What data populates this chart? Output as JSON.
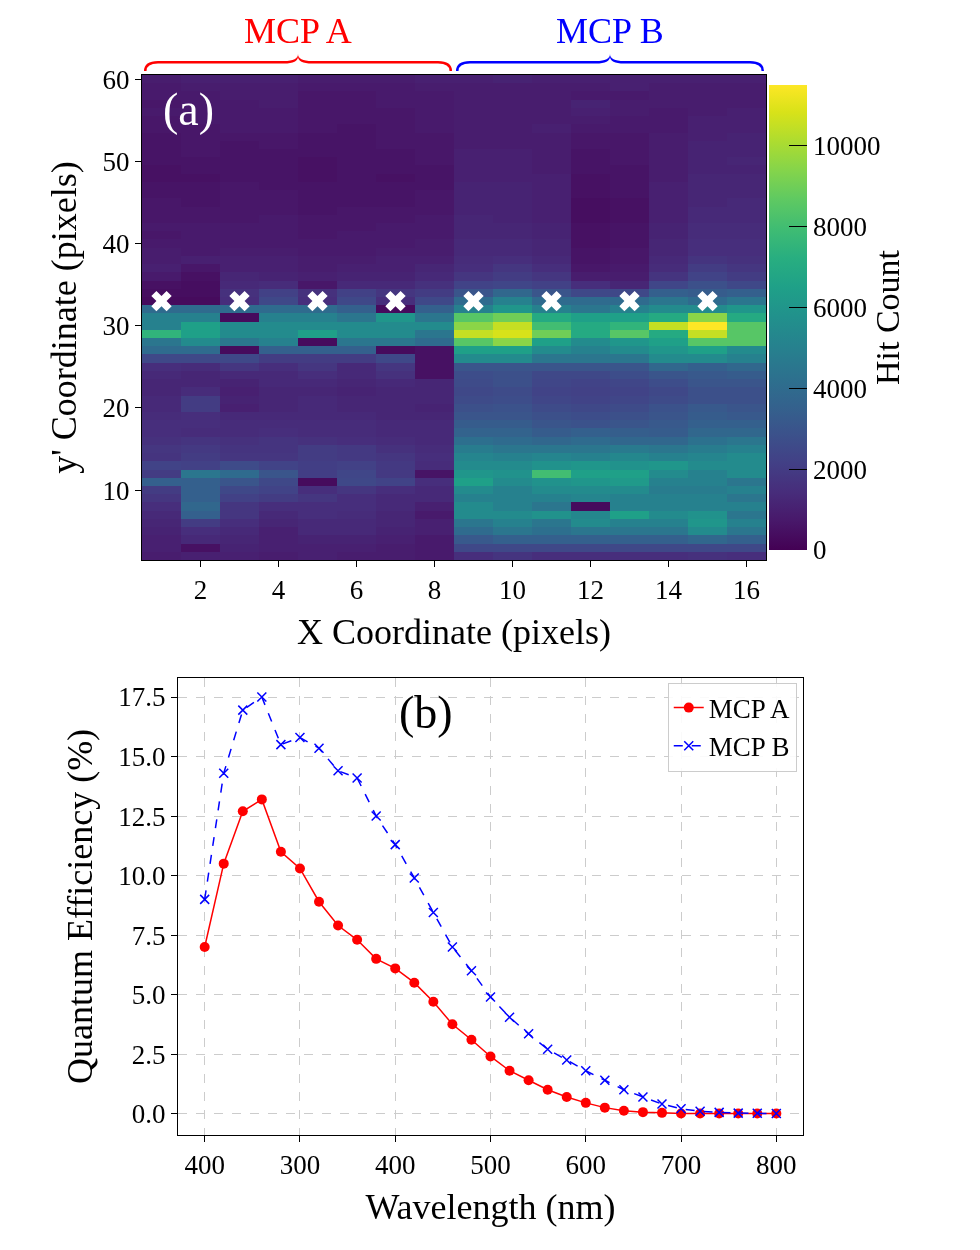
{
  "chart_data": [
    {
      "type": "heatmap",
      "annotations": [
        "(a)",
        "MCP A",
        "MCP B"
      ],
      "xlabel": "X Coordinate (pixels)",
      "ylabel": "y' Coordinate (pixels)",
      "clabel": "Hit Count",
      "x": [
        1,
        2,
        3,
        4,
        5,
        6,
        7,
        8,
        9,
        10,
        11,
        12,
        13,
        14,
        15,
        16
      ],
      "ylim": [
        1.5,
        60.5
      ],
      "yticks": [
        10,
        20,
        30,
        40,
        50,
        60
      ],
      "cells": [
        [
          900,
          1000,
          1000,
          1000,
          900,
          900,
          900,
          1000,
          1000,
          1100,
          1000,
          1000,
          1000,
          1000,
          1000,
          1000
        ],
        [
          800,
          900,
          900,
          900,
          800,
          800,
          800,
          900,
          900,
          900,
          900,
          900,
          1000,
          900,
          900,
          900
        ],
        [
          800,
          800,
          900,
          900,
          700,
          700,
          800,
          800,
          900,
          900,
          900,
          800,
          800,
          900,
          900,
          900
        ],
        [
          700,
          800,
          800,
          900,
          700,
          700,
          800,
          800,
          900,
          900,
          900,
          1100,
          900,
          900,
          900,
          900
        ],
        [
          800,
          800,
          800,
          800,
          700,
          700,
          700,
          800,
          900,
          900,
          900,
          1000,
          900,
          800,
          900,
          1000
        ],
        [
          700,
          800,
          800,
          800,
          700,
          700,
          700,
          800,
          900,
          900,
          900,
          900,
          800,
          800,
          1000,
          1000
        ],
        [
          700,
          700,
          800,
          800,
          700,
          600,
          700,
          800,
          900,
          900,
          1000,
          800,
          800,
          800,
          1000,
          1000
        ],
        [
          600,
          700,
          700,
          700,
          600,
          600,
          700,
          700,
          900,
          900,
          900,
          700,
          700,
          900,
          1000,
          1100
        ],
        [
          600,
          700,
          600,
          700,
          600,
          600,
          700,
          700,
          900,
          900,
          900,
          700,
          700,
          900,
          1100,
          1100
        ],
        [
          600,
          700,
          600,
          600,
          600,
          600,
          600,
          700,
          1000,
          1000,
          900,
          600,
          700,
          900,
          1100,
          1100
        ],
        [
          600,
          600,
          600,
          600,
          500,
          600,
          600,
          700,
          1000,
          1000,
          900,
          600,
          700,
          900,
          1100,
          1200
        ],
        [
          500,
          600,
          600,
          600,
          500,
          600,
          600,
          600,
          1000,
          1000,
          900,
          600,
          600,
          900,
          1100,
          1100
        ],
        [
          500,
          500,
          600,
          600,
          500,
          600,
          500,
          600,
          1000,
          1000,
          1000,
          500,
          600,
          900,
          1200,
          1200
        ],
        [
          600,
          600,
          700,
          600,
          600,
          600,
          600,
          600,
          1100,
          1100,
          1000,
          500,
          600,
          1000,
          1200,
          1200
        ],
        [
          600,
          600,
          700,
          700,
          600,
          600,
          600,
          700,
          1100,
          1100,
          1000,
          500,
          600,
          1000,
          1200,
          1200
        ],
        [
          700,
          600,
          700,
          700,
          600,
          600,
          600,
          700,
          1100,
          1100,
          1000,
          400,
          500,
          1000,
          1200,
          1300
        ],
        [
          700,
          700,
          700,
          700,
          600,
          700,
          700,
          700,
          1100,
          1100,
          1000,
          400,
          500,
          1000,
          1300,
          1300
        ],
        [
          700,
          700,
          700,
          800,
          700,
          700,
          700,
          800,
          1200,
          1100,
          1000,
          400,
          500,
          1000,
          1300,
          1300
        ],
        [
          800,
          800,
          800,
          800,
          700,
          700,
          800,
          800,
          1200,
          1200,
          1100,
          500,
          600,
          1100,
          1400,
          1400
        ],
        [
          700,
          800,
          800,
          800,
          700,
          800,
          800,
          800,
          1200,
          1200,
          1100,
          500,
          600,
          1100,
          1400,
          1400
        ],
        [
          800,
          800,
          800,
          800,
          800,
          800,
          800,
          900,
          1300,
          1300,
          1200,
          500,
          600,
          1200,
          1500,
          1500
        ],
        [
          900,
          800,
          900,
          900,
          800,
          800,
          900,
          900,
          1300,
          1300,
          1200,
          600,
          700,
          1200,
          1500,
          1500
        ],
        [
          900,
          1000,
          1000,
          1000,
          900,
          900,
          1000,
          1000,
          1400,
          1500,
          1300,
          600,
          700,
          1300,
          1700,
          1600
        ],
        [
          1000,
          700,
          1000,
          1000,
          900,
          1000,
          1000,
          1200,
          1500,
          1800,
          1500,
          700,
          800,
          1400,
          2000,
          1800
        ],
        [
          800,
          500,
          1200,
          1100,
          1000,
          1100,
          1100,
          1300,
          1800,
          2000,
          1800,
          900,
          900,
          1700,
          2300,
          2000
        ],
        [
          500,
          400,
          1300,
          1400,
          700,
          1300,
          1300,
          1600,
          2300,
          2400,
          2200,
          1500,
          1200,
          2400,
          2800,
          2500
        ],
        [
          400,
          400,
          1600,
          2200,
          1600,
          2200,
          1800,
          2000,
          3000,
          3800,
          3000,
          2500,
          2500,
          3500,
          3300,
          3500
        ],
        [
          300,
          300,
          1500,
          2500,
          1500,
          2500,
          1500,
          2500,
          4000,
          5000,
          4000,
          4000,
          4000,
          4500,
          4000,
          4500
        ],
        [
          4000,
          4000,
          4000,
          4000,
          4000,
          3500,
          300,
          3500,
          5000,
          6000,
          5000,
          4500,
          5000,
          5500,
          5500,
          6000
        ],
        [
          5000,
          5000,
          300,
          5000,
          5000,
          4500,
          6000,
          4500,
          8500,
          9000,
          7000,
          6500,
          6500,
          7000,
          9500,
          7000
        ],
        [
          5000,
          6500,
          5500,
          5500,
          5500,
          5500,
          5500,
          5500,
          9500,
          10500,
          8000,
          7000,
          7500,
          10500,
          11500,
          8500
        ],
        [
          7500,
          6500,
          5500,
          5500,
          6500,
          5500,
          5500,
          4500,
          10500,
          10800,
          9000,
          7000,
          8500,
          7000,
          10500,
          8500
        ],
        [
          4500,
          5500,
          4500,
          5000,
          300,
          4500,
          4500,
          4000,
          8500,
          9500,
          6500,
          5500,
          6000,
          6500,
          8500,
          8500
        ],
        [
          4000,
          4000,
          300,
          3500,
          3500,
          3500,
          300,
          500,
          6500,
          6500,
          5500,
          5000,
          5500,
          6000,
          6500,
          5500
        ],
        [
          2500,
          2500,
          2500,
          2000,
          2000,
          2000,
          2500,
          500,
          5500,
          5500,
          4500,
          4500,
          4500,
          5500,
          5500,
          5000
        ],
        [
          1500,
          1400,
          1800,
          1500,
          1800,
          1300,
          1800,
          500,
          3000,
          3000,
          3000,
          3000,
          3000,
          3800,
          3500,
          3800
        ],
        [
          1300,
          1200,
          1300,
          1300,
          1500,
          1300,
          1600,
          500,
          2700,
          2800,
          2500,
          2500,
          2700,
          3000,
          3200,
          3300
        ],
        [
          1200,
          1200,
          1100,
          1300,
          1300,
          1200,
          1300,
          1200,
          2600,
          2800,
          2400,
          2300,
          2400,
          2700,
          3000,
          3000
        ],
        [
          1200,
          1400,
          1000,
          1200,
          1200,
          1100,
          1200,
          1200,
          2500,
          2600,
          2300,
          2200,
          2300,
          2500,
          2800,
          2800
        ],
        [
          1300,
          2000,
          1100,
          1200,
          1300,
          1200,
          1200,
          1200,
          2600,
          2700,
          2400,
          2300,
          2400,
          2600,
          2800,
          2800
        ],
        [
          1300,
          2000,
          1000,
          1200,
          1300,
          1200,
          1200,
          1100,
          2800,
          2900,
          2600,
          2500,
          2600,
          2900,
          3200,
          3000
        ],
        [
          1400,
          1500,
          1300,
          1300,
          1300,
          1300,
          1200,
          1200,
          3000,
          3000,
          2800,
          2700,
          2800,
          3000,
          3300,
          3200
        ],
        [
          1500,
          1500,
          1400,
          1400,
          1400,
          1400,
          1300,
          1300,
          3300,
          3300,
          3000,
          2900,
          3000,
          3200,
          3500,
          3500
        ],
        [
          1500,
          1400,
          1400,
          1500,
          1400,
          1400,
          1300,
          1300,
          3600,
          3600,
          3300,
          3500,
          3400,
          3300,
          3800,
          3800
        ],
        [
          1600,
          1700,
          1600,
          1700,
          1600,
          1500,
          1400,
          1300,
          4200,
          4000,
          3800,
          4000,
          3800,
          3800,
          4300,
          4500
        ],
        [
          1800,
          1900,
          1700,
          1700,
          2000,
          1900,
          1600,
          1400,
          4800,
          4500,
          4500,
          4500,
          4700,
          4500,
          4800,
          5000
        ],
        [
          1700,
          2000,
          1800,
          1800,
          2000,
          1900,
          1800,
          1500,
          5200,
          5000,
          5200,
          5000,
          5300,
          5000,
          5200,
          5500
        ],
        [
          2300,
          2200,
          2600,
          2300,
          2100,
          2200,
          1900,
          1400,
          5500,
          5500,
          5800,
          6000,
          5800,
          6000,
          5500,
          5500
        ],
        [
          2000,
          4500,
          4000,
          3000,
          2100,
          2400,
          1900,
          600,
          6000,
          5800,
          8000,
          6500,
          6500,
          5500,
          5000,
          5500
        ],
        [
          3500,
          3500,
          3000,
          2500,
          300,
          2500,
          2300,
          1500,
          6500,
          5500,
          5800,
          6000,
          6200,
          5000,
          5000,
          4500
        ],
        [
          2000,
          3500,
          2500,
          2300,
          1500,
          1800,
          1500,
          1300,
          5500,
          5000,
          5500,
          5500,
          5500,
          4800,
          4800,
          5000
        ],
        [
          1800,
          3500,
          2200,
          2000,
          1800,
          1500,
          1300,
          1300,
          5000,
          5000,
          5000,
          5200,
          5000,
          5000,
          5000,
          4500
        ],
        [
          1500,
          3800,
          1800,
          1500,
          1500,
          1500,
          1300,
          1000,
          5500,
          5000,
          4500,
          300,
          5000,
          5000,
          5000,
          5000
        ],
        [
          1300,
          3500,
          1800,
          1300,
          1500,
          1400,
          1200,
          800,
          5500,
          5500,
          5800,
          5300,
          6500,
          5500,
          5800,
          4500
        ],
        [
          1200,
          2000,
          1500,
          1200,
          1300,
          1300,
          1200,
          1000,
          4500,
          5000,
          4500,
          5500,
          5000,
          5000,
          6000,
          5000
        ],
        [
          1100,
          1500,
          1300,
          1000,
          1300,
          1300,
          1100,
          1000,
          4000,
          4500,
          4200,
          4500,
          4500,
          4500,
          5500,
          4500
        ],
        [
          1000,
          1300,
          1200,
          1000,
          1100,
          1100,
          1000,
          800,
          3200,
          3500,
          3500,
          3500,
          3500,
          3500,
          3800,
          3500
        ],
        [
          1000,
          500,
          1100,
          1000,
          1000,
          1000,
          900,
          800,
          2500,
          2500,
          2500,
          2500,
          2500,
          2500,
          2500,
          2500
        ],
        [
          900,
          1000,
          1000,
          900,
          1000,
          900,
          900,
          800,
          1500,
          1700,
          1500,
          1500,
          1500,
          1500,
          1600,
          1500
        ]
      ],
      "clim": [
        0,
        11500
      ],
      "cticks": [
        0,
        2000,
        4000,
        6000,
        8000,
        10000
      ],
      "xlim": [
        0.5,
        16.5
      ],
      "xticks": [
        2,
        4,
        6,
        8,
        10,
        12,
        14,
        16
      ],
      "series": [
        {
          "type": "scatter",
          "marker": "cross",
          "color": "#ffffff",
          "x": [
            1,
            3,
            5,
            7,
            9,
            11,
            13,
            15
          ],
          "values": [
            33,
            33,
            33,
            33,
            33,
            33,
            33,
            33
          ]
        }
      ]
    },
    {
      "type": "line",
      "annotations": [
        "(b)"
      ],
      "xlabel": "Wavelength (nm)",
      "ylabel": "Quantum Efficiency (%)",
      "categories": [
        "400",
        null,
        null,
        null,
        null,
        "300",
        null,
        null,
        null,
        null,
        "400",
        null,
        null,
        null,
        null,
        "500",
        null,
        null,
        null,
        null,
        "600",
        null,
        null,
        null,
        null,
        "700",
        null,
        null,
        null,
        null,
        "800"
      ],
      "series": [
        {
          "name": "MCP A",
          "color": "#ff0000",
          "marker": "circle",
          "line_style": "solid",
          "values": [
            7.0,
            10.5,
            12.7,
            13.2,
            11.0,
            10.3,
            8.9,
            7.9,
            7.3,
            6.5,
            6.1,
            5.5,
            4.7,
            3.75,
            3.1,
            2.4,
            1.8,
            1.4,
            1.0,
            0.7,
            0.45,
            0.25,
            0.12,
            0.06,
            0.03,
            0,
            0,
            0,
            0,
            0,
            0
          ]
        },
        {
          "name": "MCP B",
          "color": "#0000ff",
          "marker": "cross",
          "line_style": "dashed",
          "values": [
            9.0,
            14.3,
            16.95,
            17.5,
            15.5,
            15.8,
            15.35,
            14.4,
            14.1,
            12.5,
            11.3,
            9.9,
            8.45,
            7.0,
            6.0,
            4.9,
            4.05,
            3.35,
            2.7,
            2.25,
            1.8,
            1.4,
            1.0,
            0.7,
            0.4,
            0.2,
            0.1,
            0.05,
            0.02,
            0.01,
            0
          ]
        }
      ],
      "ylim": [
        -0.9,
        18.3
      ],
      "yticks": [
        {
          "value": 0,
          "label": "0.0"
        },
        2.5,
        {
          "value": 5,
          "label": "5.0"
        },
        7.5,
        {
          "value": 10,
          "label": "10.0"
        },
        12.5,
        {
          "value": 15,
          "label": "15.0"
        },
        17.5
      ],
      "grid": true,
      "legend": "top right"
    }
  ]
}
